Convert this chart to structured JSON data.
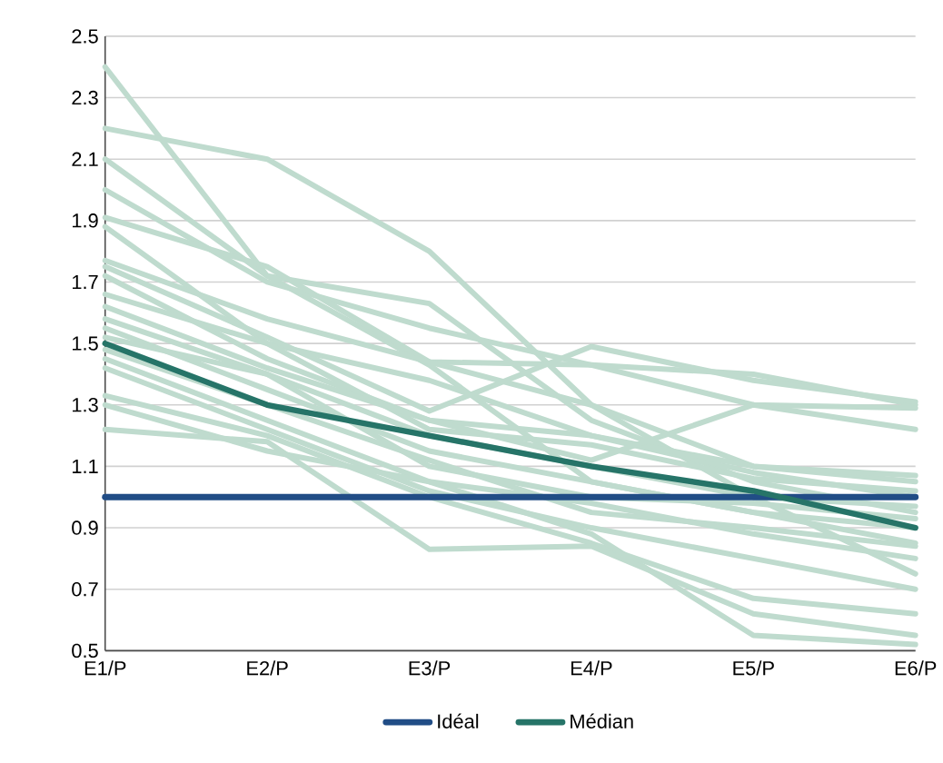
{
  "chart_data": {
    "type": "line",
    "categories": [
      "E1/P",
      "E2/P",
      "E3/P",
      "E4/P",
      "E5/P",
      "E6/P"
    ],
    "ylim": [
      0.5,
      2.5
    ],
    "yticks": [
      0.5,
      0.7,
      0.9,
      1.1,
      1.3,
      1.5,
      1.7,
      1.9,
      2.1,
      2.3,
      2.5
    ],
    "grid": "y",
    "legend": "bottom",
    "marker": "none",
    "line_style": "solid",
    "series": [
      {
        "color": "#bfdbce",
        "values": [
          2.4,
          1.72,
          1.43,
          1.05,
          0.95,
          0.85
        ]
      },
      {
        "color": "#bfdbce",
        "values": [
          2.2,
          2.1,
          1.8,
          1.3,
          1.0,
          0.75
        ]
      },
      {
        "color": "#bfdbce",
        "values": [
          2.1,
          1.72,
          1.63,
          1.25,
          1.05,
          0.95
        ]
      },
      {
        "color": "#bfdbce",
        "values": [
          2.0,
          1.7,
          1.55,
          1.43,
          1.4,
          1.3
        ]
      },
      {
        "color": "#bfdbce",
        "values": [
          1.91,
          1.75,
          1.44,
          1.43,
          1.3,
          1.29
        ]
      },
      {
        "color": "#bfdbce",
        "values": [
          1.88,
          1.5,
          1.38,
          1.2,
          1.08,
          1.0
        ]
      },
      {
        "color": "#bfdbce",
        "values": [
          1.77,
          1.58,
          1.44,
          1.3,
          1.1,
          1.05
        ]
      },
      {
        "color": "#bfdbce",
        "values": [
          1.75,
          1.52,
          1.28,
          1.49,
          1.38,
          1.31
        ]
      },
      {
        "color": "#bfdbce",
        "values": [
          1.72,
          1.45,
          1.25,
          1.2,
          1.1,
          1.07
        ]
      },
      {
        "color": "#bfdbce",
        "values": [
          1.66,
          1.5,
          1.22,
          1.17,
          1.06,
          1.02
        ]
      },
      {
        "color": "#bfdbce",
        "values": [
          1.62,
          1.42,
          1.25,
          1.12,
          1.3,
          1.22
        ]
      },
      {
        "color": "#bfdbce",
        "values": [
          1.58,
          1.4,
          1.2,
          1.1,
          1.0,
          0.97
        ]
      },
      {
        "color": "#bfdbce",
        "values": [
          1.55,
          1.35,
          1.15,
          1.05,
          0.95,
          0.9
        ]
      },
      {
        "color": "#bfdbce",
        "values": [
          1.52,
          1.4,
          1.1,
          1.0,
          0.98,
          0.93
        ]
      },
      {
        "color": "#bfdbce",
        "values": [
          1.48,
          1.3,
          1.12,
          0.95,
          0.9,
          0.84
        ]
      },
      {
        "color": "#bfdbce",
        "values": [
          1.45,
          1.25,
          1.05,
          0.98,
          0.88,
          0.8
        ]
      },
      {
        "color": "#bfdbce",
        "values": [
          1.42,
          1.22,
          1.02,
          0.9,
          0.8,
          0.7
        ]
      },
      {
        "color": "#bfdbce",
        "values": [
          1.33,
          1.2,
          1.0,
          0.85,
          0.67,
          0.62
        ]
      },
      {
        "color": "#bfdbce",
        "values": [
          1.3,
          1.15,
          1.05,
          0.88,
          0.55,
          0.52
        ]
      },
      {
        "color": "#bfdbce",
        "values": [
          1.22,
          1.18,
          0.83,
          0.84,
          0.62,
          0.55
        ]
      },
      {
        "name": "Idéal",
        "color": "#214d86",
        "values": [
          1.0,
          1.0,
          1.0,
          1.0,
          1.0,
          1.0
        ]
      },
      {
        "name": "Médian",
        "color": "#267468",
        "values": [
          1.5,
          1.3,
          1.2,
          1.1,
          1.02,
          0.9
        ]
      }
    ]
  }
}
